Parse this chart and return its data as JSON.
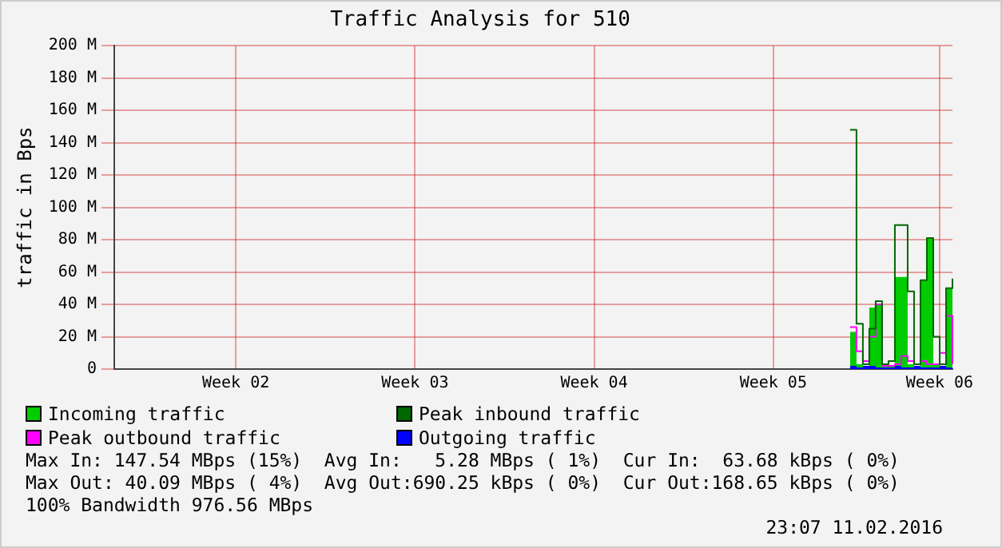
{
  "chart_data": {
    "type": "line",
    "title": "Traffic Analysis for 510",
    "ylabel": "traffic in Bps",
    "categories": [
      null,
      null,
      null,
      null,
      null,
      null,
      null,
      null,
      null,
      null,
      null,
      null,
      null,
      null,
      null,
      null,
      null,
      null,
      null,
      "Week 02",
      null,
      null,
      null,
      null,
      null,
      null,
      null,
      null,
      null,
      null,
      null,
      null,
      null,
      null,
      null,
      null,
      null,
      null,
      null,
      null,
      null,
      null,
      null,
      null,
      null,
      null,
      null,
      "Week 03",
      null,
      null,
      null,
      null,
      null,
      null,
      null,
      null,
      null,
      null,
      null,
      null,
      null,
      null,
      null,
      null,
      null,
      null,
      null,
      null,
      null,
      null,
      null,
      null,
      null,
      null,
      null,
      "Week 04",
      null,
      null,
      null,
      null,
      null,
      null,
      null,
      null,
      null,
      null,
      null,
      null,
      null,
      null,
      null,
      null,
      null,
      null,
      null,
      null,
      null,
      null,
      null,
      null,
      null,
      null,
      null,
      "Week 05",
      null,
      null,
      null,
      null,
      null,
      null,
      null,
      null,
      null,
      null,
      null,
      null,
      null,
      null,
      null,
      null,
      null,
      null,
      null,
      null,
      null,
      null,
      null,
      null,
      null,
      "Week 06",
      null,
      null
    ],
    "ylim": [
      0,
      200
    ],
    "yticks": [
      {
        "value": 0,
        "label": "0"
      },
      {
        "value": 20,
        "label": "20 M"
      },
      {
        "value": 40,
        "label": "40 M"
      },
      {
        "value": 60,
        "label": "60 M"
      },
      {
        "value": 80,
        "label": "80 M"
      },
      {
        "value": 100,
        "label": "100 M"
      },
      {
        "value": 120,
        "label": "120 M"
      },
      {
        "value": 140,
        "label": "140 M"
      },
      {
        "value": 160,
        "label": "160 M"
      },
      {
        "value": 180,
        "label": "180 M"
      },
      {
        "value": 200,
        "label": "200 M"
      }
    ],
    "grid": true,
    "legend": "bottom",
    "series": [
      {
        "name": "Incoming traffic",
        "type": "area",
        "color": "#00cc00",
        "values": [
          null,
          null,
          null,
          null,
          null,
          null,
          null,
          null,
          null,
          null,
          null,
          null,
          null,
          null,
          null,
          null,
          null,
          null,
          null,
          null,
          null,
          null,
          null,
          null,
          null,
          null,
          null,
          null,
          null,
          null,
          null,
          null,
          null,
          null,
          null,
          null,
          null,
          null,
          null,
          null,
          null,
          null,
          null,
          null,
          null,
          null,
          null,
          null,
          null,
          null,
          null,
          null,
          null,
          null,
          null,
          null,
          null,
          null,
          null,
          null,
          null,
          null,
          null,
          null,
          null,
          null,
          null,
          null,
          null,
          null,
          null,
          null,
          null,
          null,
          null,
          null,
          null,
          null,
          null,
          null,
          null,
          null,
          null,
          null,
          null,
          null,
          null,
          null,
          null,
          null,
          null,
          null,
          null,
          null,
          null,
          null,
          null,
          null,
          null,
          null,
          null,
          null,
          null,
          null,
          null,
          null,
          null,
          null,
          null,
          null,
          null,
          null,
          null,
          null,
          null,
          23,
          3,
          2,
          38,
          40,
          3,
          2,
          57,
          57,
          3,
          2,
          55,
          81,
          3,
          2,
          50,
          56
        ]
      },
      {
        "name": "Peak inbound traffic",
        "type": "step",
        "color": "#006600",
        "values": [
          null,
          null,
          null,
          null,
          null,
          null,
          null,
          null,
          null,
          null,
          null,
          null,
          null,
          null,
          null,
          null,
          null,
          null,
          null,
          null,
          null,
          null,
          null,
          null,
          null,
          null,
          null,
          null,
          null,
          null,
          null,
          null,
          null,
          null,
          null,
          null,
          null,
          null,
          null,
          null,
          null,
          null,
          null,
          null,
          null,
          null,
          null,
          null,
          null,
          null,
          null,
          null,
          null,
          null,
          null,
          null,
          null,
          null,
          null,
          null,
          null,
          null,
          null,
          null,
          null,
          null,
          null,
          null,
          null,
          null,
          null,
          null,
          null,
          null,
          null,
          null,
          null,
          null,
          null,
          null,
          null,
          null,
          null,
          null,
          null,
          null,
          null,
          null,
          null,
          null,
          null,
          null,
          null,
          null,
          null,
          null,
          null,
          null,
          null,
          null,
          null,
          null,
          null,
          null,
          null,
          null,
          null,
          null,
          null,
          null,
          null,
          null,
          null,
          null,
          null,
          148,
          28,
          3,
          25,
          42,
          3,
          5,
          89,
          89,
          48,
          3,
          55,
          81,
          20,
          3,
          50,
          56
        ]
      },
      {
        "name": "Peak outbound traffic",
        "type": "step",
        "color": "#ff00ff",
        "values": [
          null,
          null,
          null,
          null,
          null,
          null,
          null,
          null,
          null,
          null,
          null,
          null,
          null,
          null,
          null,
          null,
          null,
          null,
          null,
          null,
          null,
          null,
          null,
          null,
          null,
          null,
          null,
          null,
          null,
          null,
          null,
          null,
          null,
          null,
          null,
          null,
          null,
          null,
          null,
          null,
          null,
          null,
          null,
          null,
          null,
          null,
          null,
          null,
          null,
          null,
          null,
          null,
          null,
          null,
          null,
          null,
          null,
          null,
          null,
          null,
          null,
          null,
          null,
          null,
          null,
          null,
          null,
          null,
          null,
          null,
          null,
          null,
          null,
          null,
          null,
          null,
          null,
          null,
          null,
          null,
          null,
          null,
          null,
          null,
          null,
          null,
          null,
          null,
          null,
          null,
          null,
          null,
          null,
          null,
          null,
          null,
          null,
          null,
          null,
          null,
          null,
          null,
          null,
          null,
          null,
          null,
          null,
          null,
          null,
          null,
          null,
          null,
          null,
          null,
          null,
          26,
          11,
          5,
          20,
          40,
          2,
          2,
          3,
          8,
          5,
          3,
          5,
          3,
          3,
          10,
          33,
          3
        ]
      },
      {
        "name": "Outgoing traffic",
        "type": "area",
        "color": "#0000ff",
        "values": [
          null,
          null,
          null,
          null,
          null,
          null,
          null,
          null,
          null,
          null,
          null,
          null,
          null,
          null,
          null,
          null,
          null,
          null,
          null,
          null,
          null,
          null,
          null,
          null,
          null,
          null,
          null,
          null,
          null,
          null,
          null,
          null,
          null,
          null,
          null,
          null,
          null,
          null,
          null,
          null,
          null,
          null,
          null,
          null,
          null,
          null,
          null,
          null,
          null,
          null,
          null,
          null,
          null,
          null,
          null,
          null,
          null,
          null,
          null,
          null,
          null,
          null,
          null,
          null,
          null,
          null,
          null,
          null,
          null,
          null,
          null,
          null,
          null,
          null,
          null,
          null,
          null,
          null,
          null,
          null,
          null,
          null,
          null,
          null,
          null,
          null,
          null,
          null,
          null,
          null,
          null,
          null,
          null,
          null,
          null,
          null,
          null,
          null,
          null,
          null,
          null,
          null,
          null,
          null,
          null,
          null,
          null,
          null,
          null,
          null,
          null,
          null,
          null,
          null,
          null,
          2,
          1,
          2,
          2,
          1,
          1,
          1,
          2,
          1,
          1,
          2,
          1,
          1,
          1,
          2,
          1,
          1
        ]
      }
    ],
    "annotations": [
      "Max In: 147.54 MBps (15%)  Avg In:   5.28 MBps ( 1%)  Cur In:  63.68 kBps ( 0%)",
      "Max Out: 40.09 MBps ( 4%)  Avg Out:690.25 kBps ( 0%)  Cur Out:168.65 kBps ( 0%)",
      "100% Bandwidth 976.56 MBps",
      "23:07 11.02.2016"
    ]
  }
}
